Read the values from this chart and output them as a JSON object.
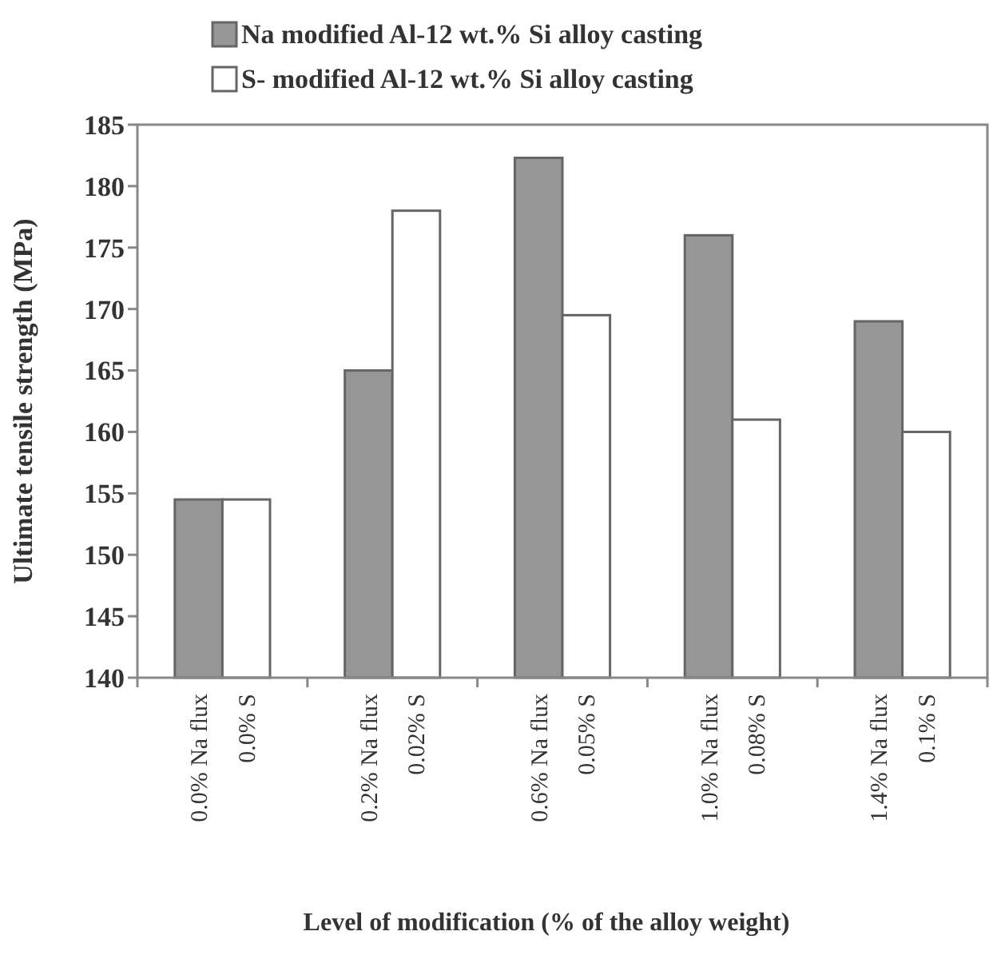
{
  "chart_data": {
    "type": "bar",
    "xlabel": "Level of modification (% of the alloy weight)",
    "ylabel": "Ultimate tensile strength (MPa)",
    "categories": [
      "0.0% Na flux",
      "0.0% S",
      "0.2% Na flux",
      "0.02% S",
      "0.6% Na flux",
      "0.05% S",
      "1.0% Na flux",
      "0.08% S",
      "1.4% Na flux",
      "0.1% S"
    ],
    "series": [
      {
        "name": "Na modified Al-12 wt.% Si alloy casting",
        "color": "#969696",
        "values": [
          154.5,
          null,
          165,
          null,
          182.3,
          null,
          176,
          null,
          169,
          null
        ]
      },
      {
        "name": "S- modified Al-12 wt.% Si alloy casting",
        "color": "#ffffff",
        "values": [
          null,
          154.5,
          null,
          178,
          null,
          169.5,
          null,
          161,
          null,
          160
        ]
      }
    ],
    "ylim": [
      140,
      185
    ],
    "yticks": [
      140,
      145,
      150,
      155,
      160,
      165,
      170,
      175,
      180,
      185
    ],
    "grid": false,
    "legend": "top"
  }
}
